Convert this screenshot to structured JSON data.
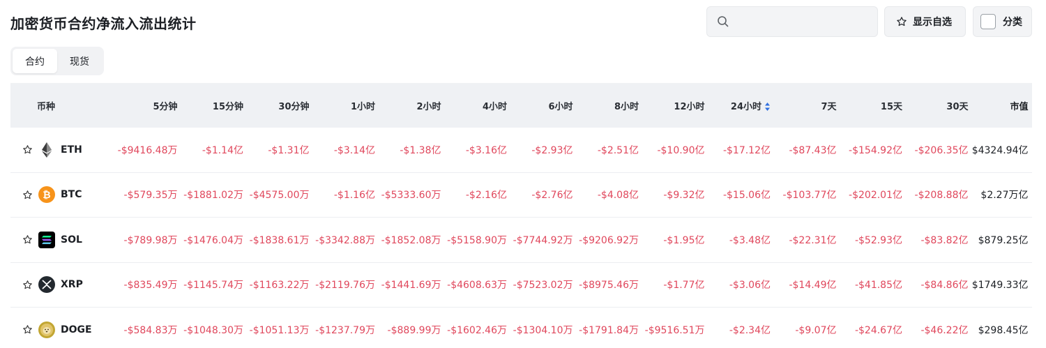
{
  "header": {
    "title": "加密货币合约净流入流出统计",
    "search_placeholder": "",
    "favorites_label": "显示自选",
    "category_label": "分类"
  },
  "tabs": [
    {
      "label": "合约",
      "active": true
    },
    {
      "label": "现货",
      "active": false
    }
  ],
  "table": {
    "columns": [
      "币种",
      "5分钟",
      "15分钟",
      "30分钟",
      "1小时",
      "2小时",
      "4小时",
      "6小时",
      "8小时",
      "12小时",
      "24小时",
      "7天",
      "15天",
      "30天",
      "市值"
    ],
    "sorted_column": "24小时",
    "rows": [
      {
        "symbol": "ETH",
        "icon": "eth-icon",
        "values": [
          "-$9416.48万",
          "-$1.14亿",
          "-$1.31亿",
          "-$3.14亿",
          "-$1.38亿",
          "-$3.16亿",
          "-$2.93亿",
          "-$2.51亿",
          "-$10.90亿",
          "-$17.12亿",
          "-$87.43亿",
          "-$154.92亿",
          "-$206.35亿"
        ],
        "market_cap": "$4324.94亿"
      },
      {
        "symbol": "BTC",
        "icon": "btc-icon",
        "values": [
          "-$579.35万",
          "-$1881.02万",
          "-$4575.00万",
          "-$1.16亿",
          "-$5333.60万",
          "-$2.16亿",
          "-$2.76亿",
          "-$4.08亿",
          "-$9.32亿",
          "-$15.06亿",
          "-$103.77亿",
          "-$202.01亿",
          "-$208.88亿"
        ],
        "market_cap": "$2.27万亿"
      },
      {
        "symbol": "SOL",
        "icon": "sol-icon",
        "values": [
          "-$789.98万",
          "-$1476.04万",
          "-$1838.61万",
          "-$3342.88万",
          "-$1852.08万",
          "-$5158.90万",
          "-$7744.92万",
          "-$9206.92万",
          "-$1.95亿",
          "-$3.48亿",
          "-$22.31亿",
          "-$52.93亿",
          "-$83.82亿"
        ],
        "market_cap": "$879.25亿"
      },
      {
        "symbol": "XRP",
        "icon": "xrp-icon",
        "values": [
          "-$835.49万",
          "-$1145.74万",
          "-$1163.22万",
          "-$2119.76万",
          "-$1441.69万",
          "-$4608.63万",
          "-$7523.02万",
          "-$8975.46万",
          "-$1.77亿",
          "-$3.06亿",
          "-$14.49亿",
          "-$41.85亿",
          "-$84.86亿"
        ],
        "market_cap": "$1749.33亿"
      },
      {
        "symbol": "DOGE",
        "icon": "doge-icon",
        "values": [
          "-$584.83万",
          "-$1048.30万",
          "-$1051.13万",
          "-$1237.79万",
          "-$889.99万",
          "-$1602.46万",
          "-$1304.10万",
          "-$1791.84万",
          "-$9516.51万",
          "-$2.34亿",
          "-$9.07亿",
          "-$24.67亿",
          "-$46.22亿"
        ],
        "market_cap": "$298.45亿"
      }
    ]
  },
  "colors": {
    "negative": "#e0475c",
    "header_bg": "#eff1f4",
    "sort_active": "#2f6fe0",
    "eth": "#3c3c3d",
    "btc": "#f7931a",
    "sol": "#000000",
    "xrp": "#23292f",
    "doge": "#c2a633"
  }
}
